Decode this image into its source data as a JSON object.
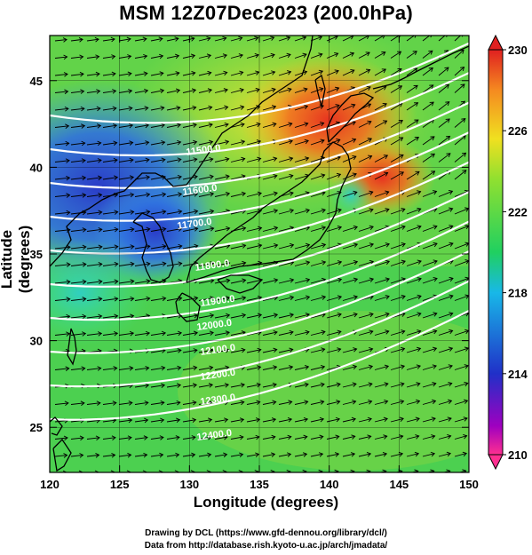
{
  "title": "MSM 12Z07Dec2023 (200.0hPa)",
  "xlabel": "Longitude (degrees)",
  "ylabel": "Latitude  (degrees)",
  "x_ticks": [
    "120",
    "125",
    "130",
    "135",
    "140",
    "145",
    "150"
  ],
  "y_ticks": [
    "25",
    "30",
    "35",
    "40",
    "45"
  ],
  "colorbar": {
    "min": 210,
    "max": 230,
    "tick_labels": [
      "230",
      "226",
      "222",
      "218",
      "214",
      "210"
    ]
  },
  "contour_labels": [
    "11500.0",
    "11600.0",
    "11700.0",
    "11800.0",
    "11900.0",
    "12000.0",
    "12100.0",
    "12200.0",
    "12300.0",
    "12400.0"
  ],
  "footer": {
    "line1": "Drawing by DCL (https://www.gfd-dennou.org/library/dcl/)",
    "line2": "Data from http://database.rish.kyoto-u.ac.jp/arch/jmadata/"
  },
  "chart_data": {
    "type": "heatmap",
    "title": "MSM 12Z07Dec2023 (200.0hPa)",
    "xlabel": "Longitude (degrees)",
    "ylabel": "Latitude  (degrees)",
    "xlim": [
      120,
      150
    ],
    "ylim": [
      22.4,
      47.6
    ],
    "colorbar_range": [
      210,
      230
    ],
    "colorbar_colors": [
      "#ff2f90",
      "#a000c0",
      "#2030c8",
      "#18b8e8",
      "#20d060",
      "#90e030",
      "#f0e020",
      "#f58a20",
      "#e02020"
    ],
    "overlay": [
      "wind vectors",
      "geopotential height contours"
    ],
    "contour_levels": [
      11500,
      11600,
      11700,
      11800,
      11900,
      12000,
      12100,
      12200,
      12300,
      12400
    ]
  }
}
